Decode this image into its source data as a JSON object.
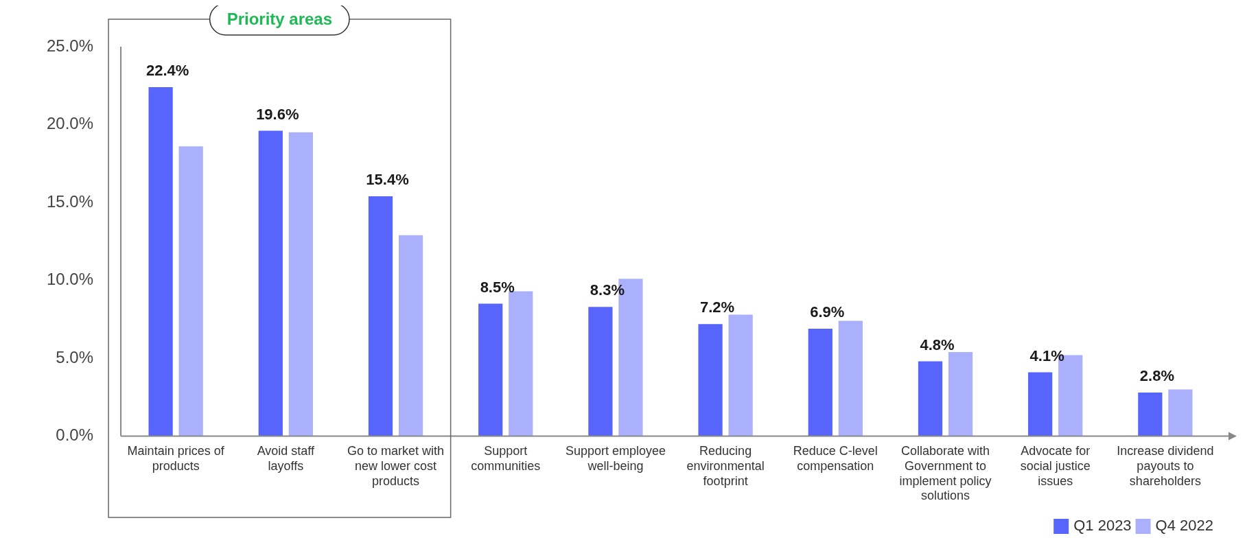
{
  "chart_data": {
    "type": "bar",
    "categories": [
      "Maintain prices of products",
      "Avoid staff layoffs",
      "Go to market with new lower cost products",
      "Support communities",
      "Support employee well-being",
      "Reducing environmental footprint",
      "Reduce C-level compensation",
      "Collaborate with Government to implement policy solutions",
      "Advocate for social justice issues",
      "Increase dividend payouts to shareholders"
    ],
    "series": [
      {
        "name": "Q1 2023",
        "color": "#5865fc",
        "values": [
          22.4,
          19.6,
          15.4,
          8.5,
          8.3,
          7.2,
          6.9,
          4.8,
          4.1,
          2.8
        ],
        "value_labels": [
          "22.4%",
          "19.6%",
          "15.4%",
          "8.5%",
          "8.3%",
          "7.2%",
          "6.9%",
          "4.8%",
          "4.1%",
          "2.8%"
        ]
      },
      {
        "name": "Q4 2022",
        "color": "#aab0fc",
        "values": [
          18.6,
          19.5,
          12.9,
          9.3,
          10.1,
          7.8,
          7.4,
          5.4,
          5.2,
          3.0
        ]
      }
    ],
    "ylim": [
      0,
      25
    ],
    "yticks": [
      {
        "value": 0,
        "label": "0.0%"
      },
      {
        "value": 5,
        "label": "5.0%"
      },
      {
        "value": 10,
        "label": "10.0%"
      },
      {
        "value": 15,
        "label": "15.0%"
      },
      {
        "value": 20,
        "label": "20.0%"
      },
      {
        "value": 25,
        "label": "25.0%"
      }
    ],
    "grid": false,
    "legend": "bottom right",
    "annotations": [
      "Priority areas"
    ]
  }
}
